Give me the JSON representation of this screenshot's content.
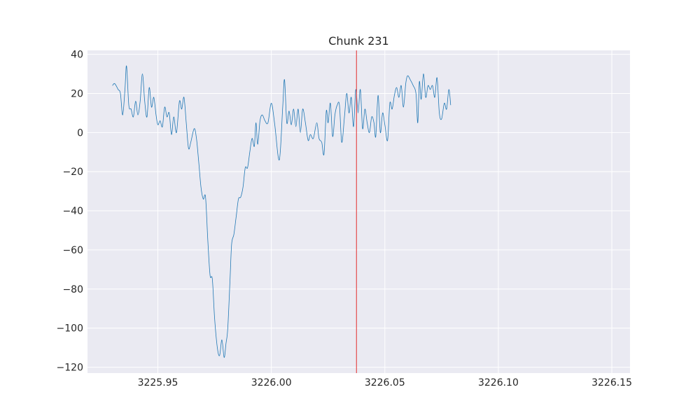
{
  "chart_data": {
    "type": "line",
    "title": "Chunk 231",
    "xlabel": "",
    "ylabel": "",
    "xlim": [
      3225.919,
      3226.158
    ],
    "ylim": [
      -123,
      42
    ],
    "x_ticks": [
      3225.95,
      3226.0,
      3226.05,
      3226.1,
      3226.15
    ],
    "x_tick_labels": [
      "3225.95",
      "3226.00",
      "3226.05",
      "3226.10",
      "3226.15"
    ],
    "y_ticks": [
      40,
      20,
      0,
      -20,
      -40,
      -60,
      -80,
      -100,
      -120
    ],
    "y_tick_labels": [
      "40",
      "20",
      "0",
      "−20",
      "−40",
      "−60",
      "−80",
      "−100",
      "−120"
    ],
    "grid": true,
    "background": "#eaeaf2",
    "grid_color": "#ffffff",
    "series": [
      {
        "color": "#1f77b4",
        "points": [
          [
            3225.93,
            24
          ],
          [
            3225.931,
            25
          ],
          [
            3225.9325,
            22
          ],
          [
            3225.9335,
            20
          ],
          [
            3225.9345,
            9
          ],
          [
            3225.9355,
            22
          ],
          [
            3225.9362,
            34
          ],
          [
            3225.9372,
            14
          ],
          [
            3225.9382,
            12
          ],
          [
            3225.9392,
            8
          ],
          [
            3225.9402,
            16
          ],
          [
            3225.9412,
            9
          ],
          [
            3225.9422,
            16
          ],
          [
            3225.9432,
            30
          ],
          [
            3225.9442,
            16
          ],
          [
            3225.9452,
            8
          ],
          [
            3225.9462,
            23
          ],
          [
            3225.9472,
            13
          ],
          [
            3225.9482,
            18
          ],
          [
            3225.9492,
            9
          ],
          [
            3225.95,
            4
          ],
          [
            3225.951,
            6
          ],
          [
            3225.952,
            3
          ],
          [
            3225.953,
            13
          ],
          [
            3225.954,
            8
          ],
          [
            3225.955,
            10
          ],
          [
            3225.956,
            -1
          ],
          [
            3225.957,
            8
          ],
          [
            3225.9582,
            0
          ],
          [
            3225.9595,
            16
          ],
          [
            3225.9605,
            12
          ],
          [
            3225.9615,
            18
          ],
          [
            3225.9625,
            5
          ],
          [
            3225.9635,
            -8
          ],
          [
            3225.9645,
            -5
          ],
          [
            3225.966,
            2
          ],
          [
            3225.967,
            -3
          ],
          [
            3225.968,
            -15
          ],
          [
            3225.969,
            -28
          ],
          [
            3225.97,
            -34
          ],
          [
            3225.971,
            -33
          ],
          [
            3225.972,
            -55
          ],
          [
            3225.973,
            -73
          ],
          [
            3225.974,
            -75
          ],
          [
            3225.975,
            -95
          ],
          [
            3225.9762,
            -110
          ],
          [
            3225.9772,
            -114
          ],
          [
            3225.9782,
            -106
          ],
          [
            3225.9792,
            -115
          ],
          [
            3225.98,
            -108
          ],
          [
            3225.9808,
            -100
          ],
          [
            3225.9818,
            -75
          ],
          [
            3225.9825,
            -57
          ],
          [
            3225.9835,
            -52
          ],
          [
            3225.9845,
            -43
          ],
          [
            3225.9855,
            -34
          ],
          [
            3225.9865,
            -33
          ],
          [
            3225.9875,
            -28
          ],
          [
            3225.9885,
            -18
          ],
          [
            3225.9895,
            -18
          ],
          [
            3225.9905,
            -10
          ],
          [
            3225.9915,
            -3
          ],
          [
            3225.9925,
            -7
          ],
          [
            3225.9932,
            5
          ],
          [
            3225.994,
            -6
          ],
          [
            3225.995,
            6
          ],
          [
            3225.996,
            9
          ],
          [
            3225.9972,
            6
          ],
          [
            3225.9985,
            5
          ],
          [
            3226.0,
            15
          ],
          [
            3226.0015,
            4
          ],
          [
            3226.0035,
            -14
          ],
          [
            3226.005,
            13
          ],
          [
            3226.0058,
            27
          ],
          [
            3226.0068,
            5
          ],
          [
            3226.0078,
            11
          ],
          [
            3226.0088,
            4
          ],
          [
            3226.0098,
            12
          ],
          [
            3226.0108,
            3
          ],
          [
            3226.0118,
            12
          ],
          [
            3226.0128,
            0
          ],
          [
            3226.0138,
            12
          ],
          [
            3226.015,
            5
          ],
          [
            3226.0162,
            -4
          ],
          [
            3226.0172,
            -1
          ],
          [
            3226.0185,
            -3
          ],
          [
            3226.02,
            5
          ],
          [
            3226.021,
            -3
          ],
          [
            3226.0222,
            -5
          ],
          [
            3226.0232,
            -11
          ],
          [
            3226.0242,
            11
          ],
          [
            3226.025,
            5
          ],
          [
            3226.026,
            15
          ],
          [
            3226.027,
            -2
          ],
          [
            3226.028,
            9
          ],
          [
            3226.029,
            14
          ],
          [
            3226.03,
            14
          ],
          [
            3226.031,
            -5
          ],
          [
            3226.0322,
            8
          ],
          [
            3226.0332,
            20
          ],
          [
            3226.0342,
            10
          ],
          [
            3226.0352,
            18
          ],
          [
            3226.0362,
            3
          ],
          [
            3226.0372,
            22
          ],
          [
            3226.0382,
            10
          ],
          [
            3226.0392,
            22
          ],
          [
            3226.0402,
            2
          ],
          [
            3226.0412,
            12
          ],
          [
            3226.0422,
            5
          ],
          [
            3226.0432,
            0
          ],
          [
            3226.0442,
            8
          ],
          [
            3226.0452,
            5
          ],
          [
            3226.046,
            -2
          ],
          [
            3226.047,
            19
          ],
          [
            3226.048,
            0
          ],
          [
            3226.049,
            10
          ],
          [
            3226.05,
            4
          ],
          [
            3226.0512,
            -4
          ],
          [
            3226.0522,
            15
          ],
          [
            3226.0532,
            12
          ],
          [
            3226.0542,
            19
          ],
          [
            3226.0552,
            23
          ],
          [
            3226.0562,
            18
          ],
          [
            3226.0572,
            24
          ],
          [
            3226.0582,
            13
          ],
          [
            3226.0592,
            25
          ],
          [
            3226.06,
            29
          ],
          [
            3226.0612,
            27
          ],
          [
            3226.0625,
            24
          ],
          [
            3226.0637,
            20
          ],
          [
            3226.0645,
            5
          ],
          [
            3226.0652,
            26
          ],
          [
            3226.066,
            17
          ],
          [
            3226.067,
            30
          ],
          [
            3226.068,
            18
          ],
          [
            3226.069,
            24
          ],
          [
            3226.07,
            22
          ],
          [
            3226.071,
            24
          ],
          [
            3226.072,
            18
          ],
          [
            3226.073,
            28
          ],
          [
            3226.074,
            10
          ],
          [
            3226.075,
            7
          ],
          [
            3226.0762,
            15
          ],
          [
            3226.0772,
            12
          ],
          [
            3226.0782,
            22
          ],
          [
            3226.079,
            14
          ]
        ]
      }
    ],
    "marker_line": {
      "x": 3226.0375,
      "color": "#e32d2d"
    }
  }
}
